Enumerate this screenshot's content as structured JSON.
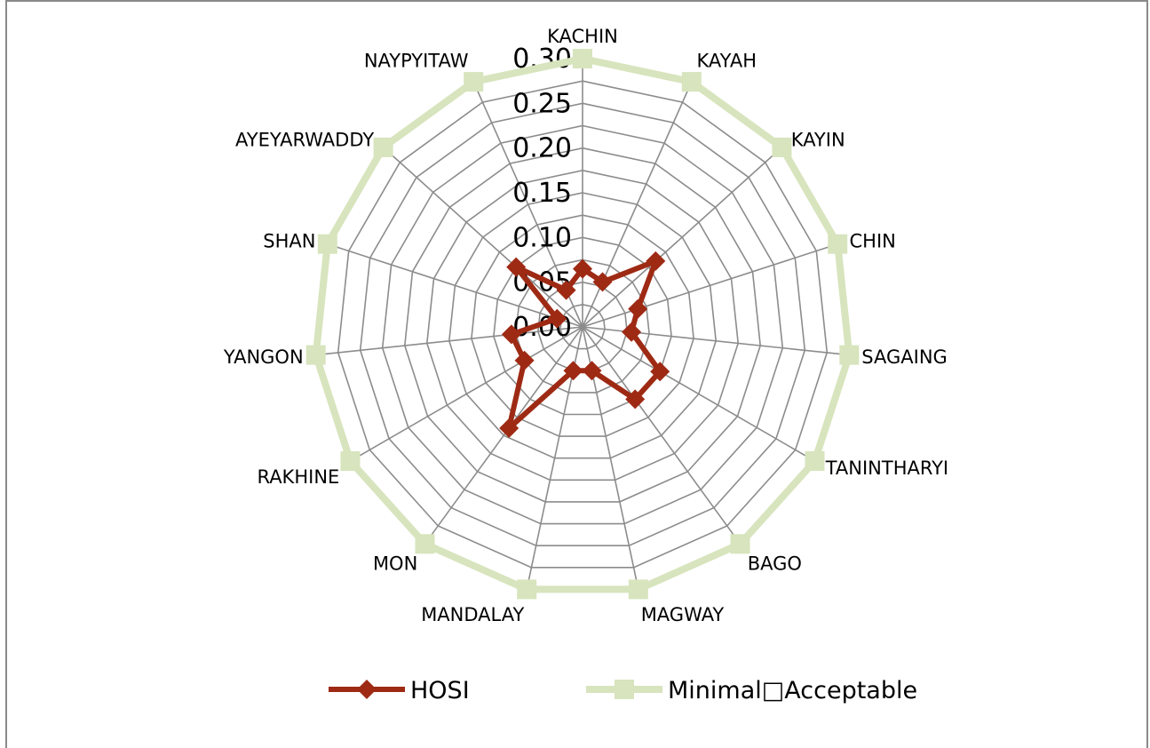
{
  "chart_data": {
    "type": "radar",
    "categories": [
      "KACHIN",
      "KAYAH",
      "KAYIN",
      "CHIN",
      "SAGAING",
      "TANINTHARYI",
      "BAGO",
      "MAGWAY",
      "MANDALAY",
      "MON",
      "RAKHINE",
      "YANGON",
      "SHAN",
      "AYEYARWADDY",
      "NAYPYITAW"
    ],
    "series": [
      {
        "name": "HOSI",
        "color": "#9e2a14",
        "marker": "diamond",
        "values": [
          0.065,
          0.055,
          0.11,
          0.065,
          0.055,
          0.1,
          0.1,
          0.05,
          0.05,
          0.14,
          0.075,
          0.08,
          0.03,
          0.1,
          0.045
        ]
      },
      {
        "name": "Minimal\u001fAcceptable",
        "color": "#d7e4bd",
        "marker": "square",
        "values": [
          0.3,
          0.3,
          0.3,
          0.3,
          0.3,
          0.3,
          0.3,
          0.3,
          0.3,
          0.3,
          0.3,
          0.3,
          0.3,
          0.3,
          0.3
        ]
      }
    ],
    "rlim": [
      0,
      0.3
    ],
    "ticks": [
      "0.00",
      "0.05",
      "0.10",
      "0.15",
      "0.20",
      "0.25",
      "0.30"
    ],
    "grid": true,
    "legend": "bottom"
  }
}
